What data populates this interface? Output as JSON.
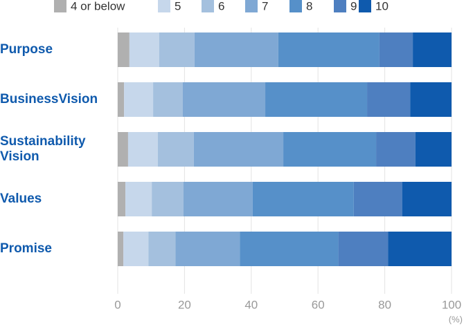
{
  "chart_data": {
    "type": "stacked-barh",
    "categories": [
      "Purpose",
      "BusinessVision",
      "Sustainability Vision",
      "Values",
      "Promise"
    ],
    "series": [
      {
        "name": "4 or below",
        "color": "#b0b0b0",
        "values": [
          3.5,
          1.9,
          3.1,
          2.3,
          1.7
        ]
      },
      {
        "name": "5",
        "color": "#c6d7eb",
        "values": [
          8.9,
          8.7,
          8.9,
          7.9,
          7.5
        ]
      },
      {
        "name": "6",
        "color": "#a4c0de",
        "values": [
          10.6,
          8.9,
          10.8,
          9.5,
          8.1
        ]
      },
      {
        "name": "7",
        "color": "#7fa8d4",
        "values": [
          25.1,
          24.7,
          26.8,
          20.7,
          19.3
        ]
      },
      {
        "name": "8",
        "color": "#5690c9",
        "values": [
          30.3,
          30.5,
          27.8,
          30.3,
          29.5
        ]
      },
      {
        "name": "9",
        "color": "#4e7fc0",
        "values": [
          10.0,
          12.9,
          11.8,
          14.5,
          14.9
        ]
      },
      {
        "name": "10",
        "color": "#0f5aad",
        "values": [
          11.6,
          12.4,
          10.8,
          14.8,
          19.0
        ]
      }
    ],
    "xlim": [
      0,
      100
    ],
    "xticks": [
      0,
      20,
      40,
      60,
      80,
      100
    ],
    "xlabel": "(%)",
    "grid": true
  }
}
